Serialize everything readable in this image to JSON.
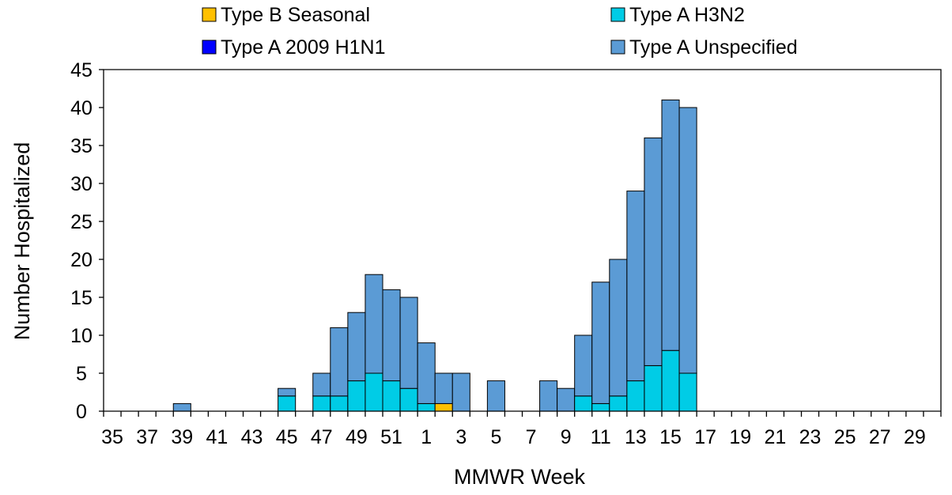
{
  "chart_data": {
    "type": "bar",
    "stacked": true,
    "xlabel": "MMWR Week",
    "ylabel": "Number Hospitalized",
    "ylim": [
      0,
      45
    ],
    "yticks": [
      0,
      5,
      10,
      15,
      20,
      25,
      30,
      35,
      40,
      45
    ],
    "grid": false,
    "legend_position": "top",
    "categories": [
      "35",
      "36",
      "37",
      "38",
      "39",
      "40",
      "41",
      "42",
      "43",
      "44",
      "45",
      "46",
      "47",
      "48",
      "49",
      "50",
      "51",
      "52",
      "1",
      "2",
      "3",
      "4",
      "5",
      "6",
      "7",
      "8",
      "9",
      "10",
      "11",
      "12",
      "13",
      "14",
      "15",
      "16",
      "17",
      "18",
      "19",
      "20",
      "21",
      "22",
      "23",
      "24",
      "25",
      "26",
      "27",
      "28",
      "29",
      "30"
    ],
    "tick_labels": [
      "35",
      "37",
      "39",
      "41",
      "43",
      "45",
      "47",
      "49",
      "51",
      "1",
      "3",
      "5",
      "7",
      "9",
      "11",
      "13",
      "15",
      "17",
      "19",
      "21",
      "23",
      "25",
      "27",
      "29"
    ],
    "series": [
      {
        "name": "Type B Seasonal",
        "color": "#FFC000",
        "values": [
          0,
          0,
          0,
          0,
          0,
          0,
          0,
          0,
          0,
          0,
          0,
          0,
          0,
          0,
          0,
          0,
          0,
          0,
          0,
          1,
          0,
          0,
          0,
          0,
          0,
          0,
          0,
          0,
          0,
          0,
          0,
          0,
          0,
          0,
          0,
          0,
          0,
          0,
          0,
          0,
          0,
          0,
          0,
          0,
          0,
          0,
          0,
          0
        ]
      },
      {
        "name": "Type A 2009 H1N1",
        "color": "#0000FF",
        "values": [
          0,
          0,
          0,
          0,
          0,
          0,
          0,
          0,
          0,
          0,
          0,
          0,
          0,
          0,
          0,
          0,
          0,
          0,
          0,
          0,
          0,
          0,
          0,
          0,
          0,
          0,
          0,
          0,
          0,
          0,
          0,
          0,
          0,
          0,
          0,
          0,
          0,
          0,
          0,
          0,
          0,
          0,
          0,
          0,
          0,
          0,
          0,
          0
        ]
      },
      {
        "name": "Type A H3N2",
        "color": "#00CCE6",
        "values": [
          0,
          0,
          0,
          0,
          0,
          0,
          0,
          0,
          0,
          0,
          2,
          0,
          2,
          2,
          4,
          5,
          4,
          3,
          1,
          0,
          0,
          0,
          0,
          0,
          0,
          0,
          0,
          2,
          1,
          2,
          4,
          6,
          8,
          5,
          0,
          0,
          0,
          0,
          0,
          0,
          0,
          0,
          0,
          0,
          0,
          0,
          0,
          0
        ]
      },
      {
        "name": "Type A Unspecified",
        "color": "#5B9BD5",
        "values": [
          0,
          0,
          0,
          0,
          1,
          0,
          0,
          0,
          0,
          0,
          1,
          0,
          3,
          9,
          9,
          13,
          12,
          12,
          8,
          4,
          5,
          0,
          4,
          0,
          0,
          4,
          3,
          8,
          16,
          18,
          25,
          30,
          33,
          35,
          0,
          0,
          0,
          0,
          0,
          0,
          0,
          0,
          0,
          0,
          0,
          0,
          0,
          0
        ]
      }
    ],
    "legend_order": [
      "Type B Seasonal",
      "Type A H3N2",
      "Type A 2009 H1N1",
      "Type A Unspecified"
    ]
  }
}
